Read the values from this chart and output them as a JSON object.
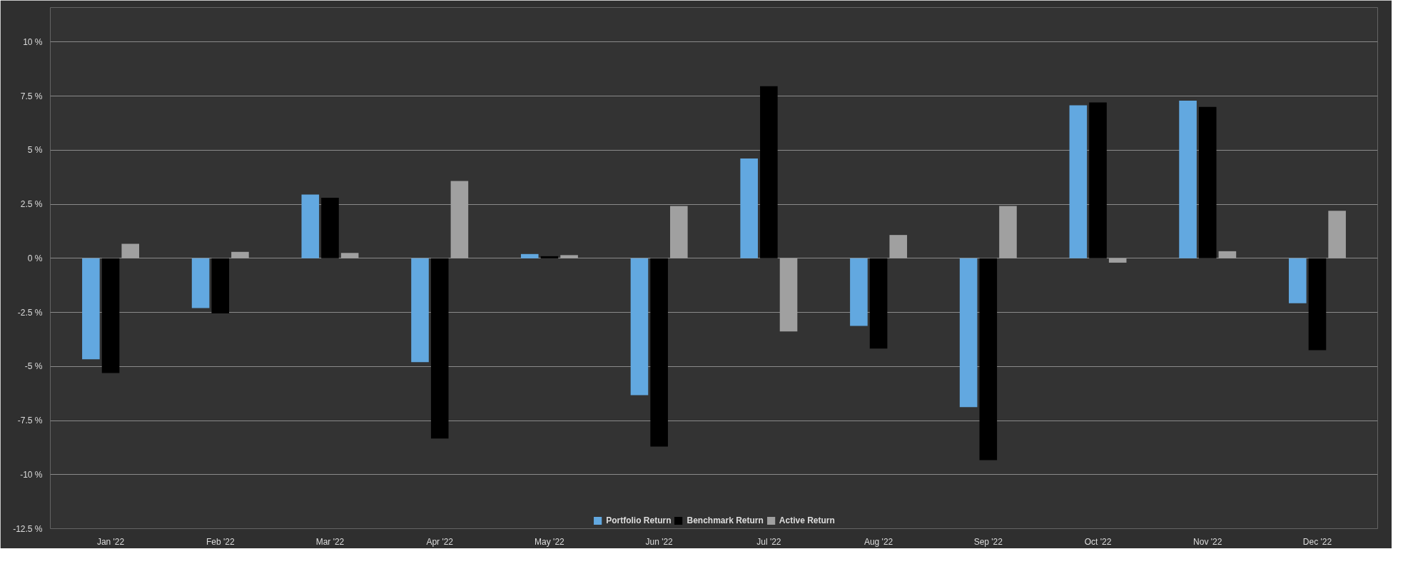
{
  "chart_data": {
    "type": "bar",
    "categories": [
      "Jan '22",
      "Feb '22",
      "Mar '22",
      "Apr '22",
      "May '22",
      "Jun '22",
      "Jul '22",
      "Aug '22",
      "Sep '22",
      "Oct '22",
      "Nov '22",
      "Dec '22"
    ],
    "series": [
      {
        "name": "Portfolio Return",
        "color": "#62a8e0",
        "values": [
          -4.67,
          -2.3,
          2.95,
          -4.8,
          0.2,
          -6.33,
          4.62,
          -3.12,
          -6.88,
          7.08,
          7.29,
          -2.08
        ]
      },
      {
        "name": "Benchmark Return",
        "color": "#000000",
        "values": [
          -5.3,
          -2.55,
          2.8,
          -8.33,
          0.1,
          -8.7,
          7.96,
          -4.17,
          -9.33,
          7.21,
          7.0,
          -4.25
        ]
      },
      {
        "name": "Active Return",
        "color": "#a0a0a0",
        "values": [
          0.67,
          0.3,
          0.25,
          3.58,
          0.15,
          2.42,
          -3.38,
          1.08,
          2.42,
          -0.2,
          0.33,
          2.2
        ]
      }
    ],
    "ylim": [
      -12.5,
      11.6
    ],
    "yticks": [
      {
        "value": -12.5,
        "label": "-12.5 %"
      },
      {
        "value": -10,
        "label": "-10 %"
      },
      {
        "value": -7.5,
        "label": "-7.5 %"
      },
      {
        "value": -5,
        "label": "-5 %"
      },
      {
        "value": -2.5,
        "label": "-2.5 %"
      },
      {
        "value": 0,
        "label": "0 %"
      },
      {
        "value": 2.5,
        "label": "2.5 %"
      },
      {
        "value": 5,
        "label": "5 %"
      },
      {
        "value": 7.5,
        "label": "7.5 %"
      },
      {
        "value": 10,
        "label": "10 %"
      }
    ],
    "grid": "y",
    "legend": "bottom"
  }
}
